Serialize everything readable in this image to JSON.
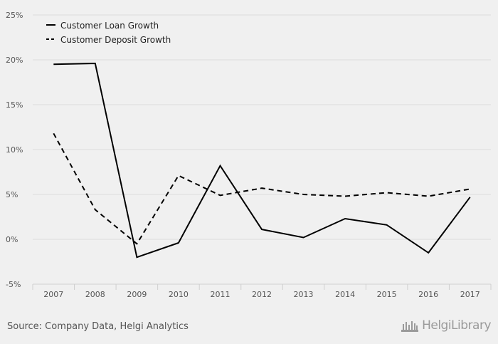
{
  "chart_data": {
    "type": "line",
    "x": [
      "2007",
      "2008",
      "2009",
      "2010",
      "2011",
      "2012",
      "2013",
      "2014",
      "2015",
      "2016",
      "2017"
    ],
    "series": [
      {
        "name": "Customer Loan Growth",
        "style": "solid",
        "values": [
          19.5,
          19.6,
          -2.0,
          -0.4,
          8.2,
          1.1,
          0.2,
          2.3,
          1.6,
          -1.5,
          4.7
        ]
      },
      {
        "name": "Customer Deposit Growth",
        "style": "dashed",
        "values": [
          11.8,
          3.3,
          -0.5,
          7.1,
          4.9,
          5.7,
          5.0,
          4.8,
          5.2,
          4.8,
          5.6
        ]
      }
    ],
    "ylim": [
      -5,
      25
    ],
    "yticks": [
      -5,
      0,
      5,
      10,
      15,
      20,
      25
    ],
    "ytick_labels": [
      "-5%",
      "0%",
      "5%",
      "10%",
      "15%",
      "20%",
      "25%"
    ],
    "grid": true,
    "legend_position": "top-left",
    "colors": {
      "line": "#000000",
      "grid": "#dcdcdc",
      "axis": "#cfcfcf",
      "tick_text": "#555555"
    }
  },
  "footer": {
    "source": "Source: Company Data, Helgi Analytics",
    "brand": "HelgiLibrary"
  }
}
